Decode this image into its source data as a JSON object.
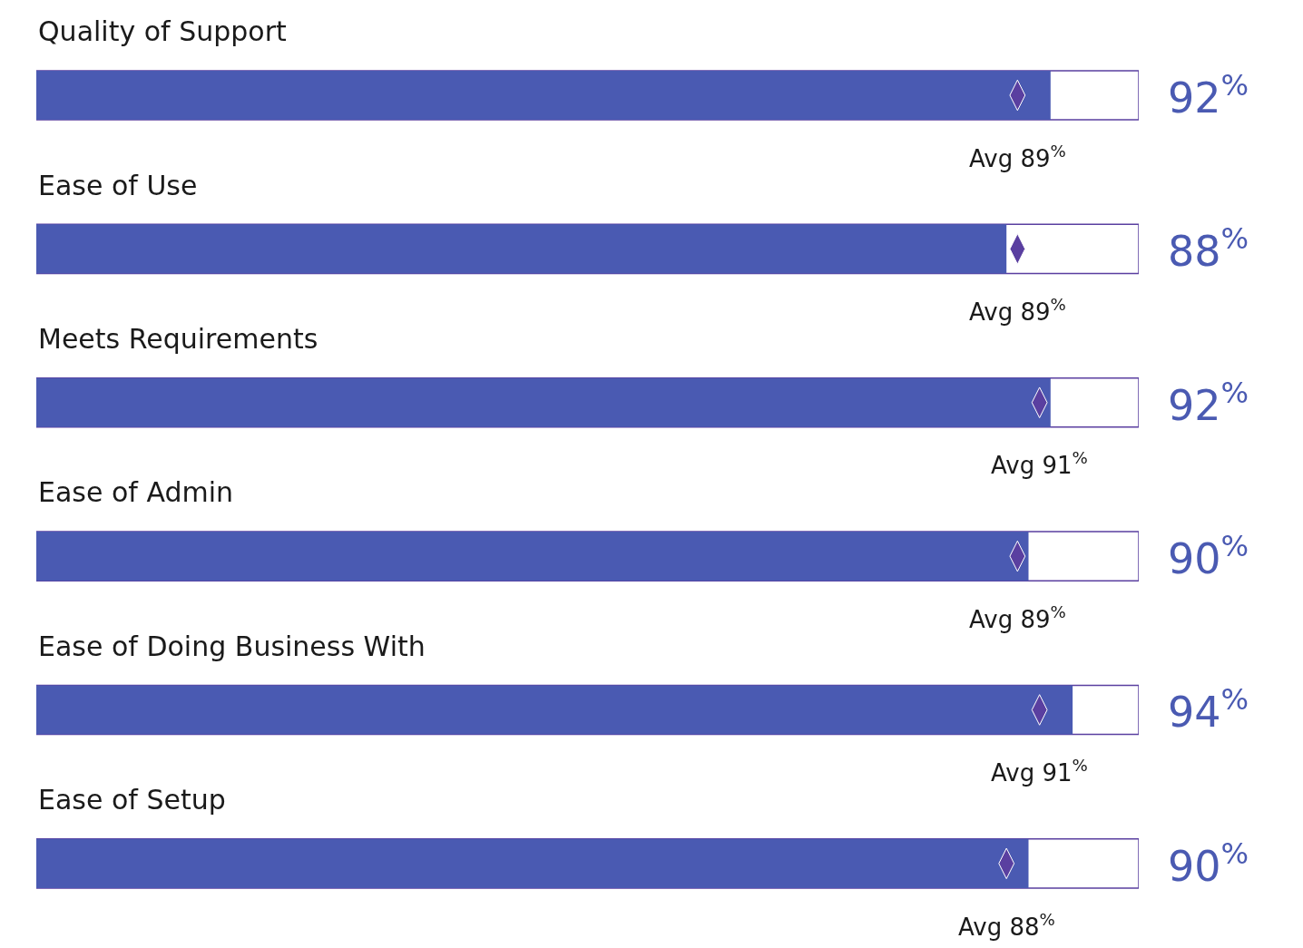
{
  "chart_data": {
    "type": "bar",
    "orientation": "horizontal",
    "relative": false,
    "tick_labels": false,
    "xlim": [
      0,
      100
    ],
    "categories": [
      "Quality of Support",
      "Ease of Use",
      "Meets Requirements",
      "Ease of Admin",
      "Ease of Doing Business With",
      "Ease of Setup"
    ],
    "series": [
      {
        "type": "bar",
        "color": "#4a5ab2",
        "values": [
          92,
          88,
          92,
          90,
          94,
          90
        ],
        "value_labels": [
          "92$^{%}$",
          "88$^{%}$",
          "92$^{%}$",
          "90$^{%}$",
          "94$^{%}$",
          "90$^{%}$"
        ]
      },
      {
        "type": "scatter",
        "x": [
          "Quality of Support",
          "Ease of Use",
          "Meets Requirements",
          "Ease of Admin",
          "Ease of Doing Business With",
          "Ease of Setup"
        ],
        "color": "#5a3fa0",
        "values": [
          89,
          89,
          91,
          89,
          91,
          88
        ],
        "value_labels": [
          "Avg 89$^{%}$",
          "Avg 89$^{%}$",
          "Avg 91$^{%}$",
          "Avg 89$^{%}$",
          "Avg 91$^{%}$",
          "Avg 88$^{%}$"
        ]
      }
    ],
    "grid": false
  }
}
